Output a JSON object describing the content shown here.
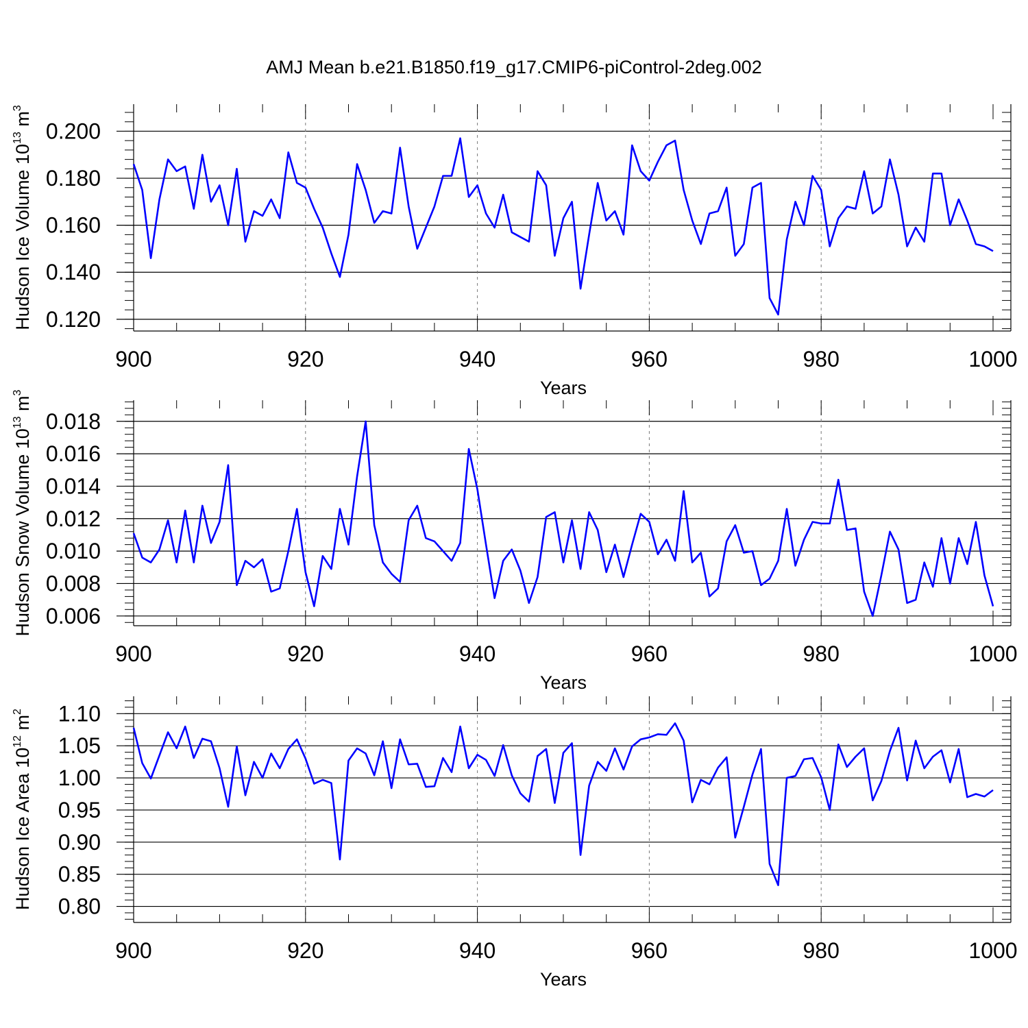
{
  "figure_title": "AMJ Mean b.e21.B1850.f19_g17.CMIP6-piControl-2deg.002",
  "line_color": "#0000ff",
  "chart_data": [
    {
      "type": "line",
      "ylabel": {
        "base": "Hudson Ice Volume 10",
        "exp": "13",
        "unit": " m",
        "unit_exp": "3"
      },
      "xlabel": "Years",
      "xlim": [
        900,
        1000
      ],
      "ylim": [
        0.115,
        0.2115
      ],
      "yticks": [
        0.12,
        0.14,
        0.16,
        0.18,
        0.2
      ],
      "ytick_labels": [
        "0.120",
        "0.140",
        "0.160",
        "0.180",
        "0.200"
      ],
      "yminor_step": 0.004,
      "xticks": [
        900,
        920,
        940,
        960,
        980,
        1000
      ],
      "xtick_labels": [
        "900",
        "920",
        "940",
        "960",
        "980",
        "1000"
      ],
      "grid_x": [
        920,
        940,
        960,
        980
      ],
      "x_start": 900,
      "values": [
        0.186,
        0.175,
        0.146,
        0.171,
        0.188,
        0.183,
        0.185,
        0.167,
        0.19,
        0.17,
        0.177,
        0.16,
        0.184,
        0.153,
        0.166,
        0.164,
        0.171,
        0.163,
        0.191,
        0.178,
        0.176,
        0.167,
        0.159,
        0.148,
        0.138,
        0.156,
        0.186,
        0.175,
        0.161,
        0.166,
        0.165,
        0.193,
        0.168,
        0.15,
        0.159,
        0.168,
        0.181,
        0.181,
        0.197,
        0.172,
        0.177,
        0.165,
        0.159,
        0.173,
        0.157,
        0.155,
        0.153,
        0.183,
        0.177,
        0.147,
        0.163,
        0.17,
        0.133,
        0.156,
        0.178,
        0.162,
        0.166,
        0.156,
        0.194,
        0.183,
        0.179,
        0.187,
        0.194,
        0.196,
        0.175,
        0.162,
        0.152,
        0.165,
        0.166,
        0.176,
        0.147,
        0.152,
        0.176,
        0.178,
        0.129,
        0.122,
        0.154,
        0.17,
        0.16,
        0.181,
        0.175,
        0.151,
        0.163,
        0.168,
        0.167,
        0.183,
        0.165,
        0.168,
        0.188,
        0.173,
        0.151,
        0.159,
        0.153,
        0.182,
        0.182,
        0.16,
        0.171,
        0.162,
        0.152,
        0.151,
        0.149
      ]
    },
    {
      "type": "line",
      "ylabel": {
        "base": "Hudson Snow Volume 10",
        "exp": "13",
        "unit": " m",
        "unit_exp": "3"
      },
      "xlabel": "Years",
      "xlim": [
        900,
        1000
      ],
      "ylim": [
        0.0054,
        0.0193
      ],
      "yticks": [
        0.006,
        0.008,
        0.01,
        0.012,
        0.014,
        0.016,
        0.018
      ],
      "ytick_labels": [
        "0.006",
        "0.008",
        "0.010",
        "0.012",
        "0.014",
        "0.016",
        "0.018"
      ],
      "yminor_step": 0.0004,
      "xticks": [
        900,
        920,
        940,
        960,
        980,
        1000
      ],
      "xtick_labels": [
        "900",
        "920",
        "940",
        "960",
        "980",
        "1000"
      ],
      "grid_x": [
        920,
        940,
        960,
        980
      ],
      "x_start": 900,
      "values": [
        0.0111,
        0.0096,
        0.0093,
        0.0101,
        0.0119,
        0.0093,
        0.0125,
        0.0093,
        0.0128,
        0.0105,
        0.0118,
        0.0153,
        0.0079,
        0.0094,
        0.009,
        0.0095,
        0.0075,
        0.0077,
        0.01,
        0.0126,
        0.0087,
        0.0066,
        0.0097,
        0.0089,
        0.0126,
        0.0104,
        0.0146,
        0.018,
        0.0116,
        0.0093,
        0.0086,
        0.0081,
        0.0119,
        0.0128,
        0.0108,
        0.0106,
        0.01,
        0.0094,
        0.0105,
        0.0163,
        0.0138,
        0.0104,
        0.0071,
        0.0094,
        0.0101,
        0.0088,
        0.0068,
        0.0084,
        0.0121,
        0.0124,
        0.0093,
        0.0119,
        0.0089,
        0.0124,
        0.0113,
        0.0087,
        0.0104,
        0.0084,
        0.0104,
        0.0123,
        0.0118,
        0.0098,
        0.0107,
        0.0094,
        0.0137,
        0.0093,
        0.0099,
        0.0072,
        0.0077,
        0.0106,
        0.0116,
        0.0099,
        0.01,
        0.0079,
        0.0083,
        0.0094,
        0.0126,
        0.0091,
        0.0107,
        0.0118,
        0.0117,
        0.0117,
        0.0144,
        0.0113,
        0.0114,
        0.0075,
        0.006,
        0.0085,
        0.0112,
        0.0101,
        0.0068,
        0.007,
        0.0093,
        0.0078,
        0.0108,
        0.008,
        0.0108,
        0.0092,
        0.0118,
        0.0085,
        0.0066
      ]
    },
    {
      "type": "line",
      "ylabel": {
        "base": "Hudson Ice Area 10",
        "exp": "12",
        "unit": " m",
        "unit_exp": "2"
      },
      "xlabel": "Years",
      "xlim": [
        900,
        1000
      ],
      "ylim": [
        0.775,
        1.127
      ],
      "yticks": [
        0.8,
        0.85,
        0.9,
        0.95,
        1.0,
        1.05,
        1.1
      ],
      "ytick_labels": [
        "0.80",
        "0.85",
        "0.90",
        "0.95",
        "1.00",
        "1.05",
        "1.10"
      ],
      "yminor_step": 0.01,
      "xticks": [
        900,
        920,
        940,
        960,
        980,
        1000
      ],
      "xtick_labels": [
        "900",
        "920",
        "940",
        "960",
        "980",
        "1000"
      ],
      "grid_x": [
        920,
        940,
        960,
        980
      ],
      "x_start": 900,
      "values": [
        1.078,
        1.023,
        0.999,
        1.035,
        1.071,
        1.046,
        1.08,
        1.031,
        1.061,
        1.057,
        1.015,
        0.955,
        1.049,
        0.973,
        1.025,
        1.0,
        1.038,
        1.015,
        1.045,
        1.06,
        1.03,
        0.991,
        0.997,
        0.992,
        0.873,
        1.027,
        1.046,
        1.038,
        1.004,
        1.057,
        0.984,
        1.06,
        1.021,
        1.022,
        0.986,
        0.987,
        1.031,
        1.009,
        1.08,
        1.015,
        1.036,
        1.028,
        1.003,
        1.051,
        1.004,
        0.976,
        0.963,
        1.034,
        1.045,
        0.961,
        1.039,
        1.054,
        0.88,
        0.988,
        1.025,
        1.011,
        1.046,
        1.013,
        1.049,
        1.06,
        1.063,
        1.068,
        1.067,
        1.085,
        1.058,
        0.962,
        0.997,
        0.99,
        1.016,
        1.032,
        0.907,
        0.955,
        1.005,
        1.045,
        0.866,
        0.833,
        1.0,
        1.003,
        1.029,
        1.031,
        1.001,
        0.95,
        1.052,
        1.017,
        1.033,
        1.046,
        0.965,
        0.995,
        1.042,
        1.078,
        0.996,
        1.058,
        1.015,
        1.033,
        1.043,
        0.993,
        1.045,
        0.97,
        0.975,
        0.971,
        0.981
      ]
    }
  ]
}
